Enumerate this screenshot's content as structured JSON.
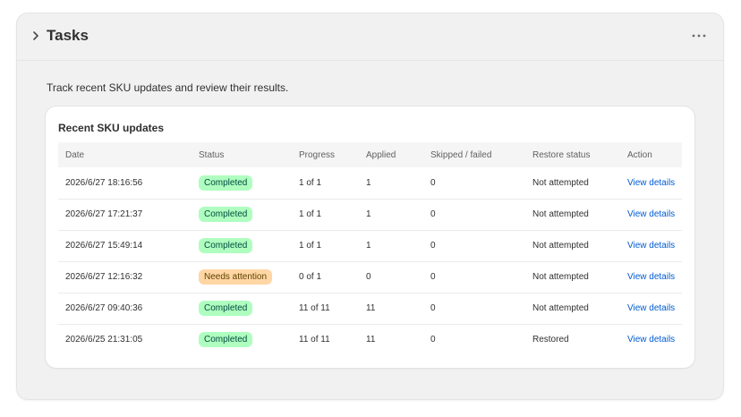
{
  "header": {
    "title": "Tasks",
    "expand_icon": "chevron-right-icon",
    "more_icon": "more-horizontal-icon"
  },
  "description": "Track recent SKU updates and review their results.",
  "card": {
    "title": "Recent SKU updates",
    "columns": [
      "Date",
      "Status",
      "Progress",
      "Applied",
      "Skipped / failed",
      "Restore status",
      "Action"
    ],
    "rows": [
      {
        "date": "2026/6/27 18:16:56",
        "status": "Completed",
        "status_tone": "success",
        "progress": "1 of 1",
        "applied": "1",
        "skipped": "0",
        "restore": "Not attempted",
        "action": "View details"
      },
      {
        "date": "2026/6/27 17:21:37",
        "status": "Completed",
        "status_tone": "success",
        "progress": "1 of 1",
        "applied": "1",
        "skipped": "0",
        "restore": "Not attempted",
        "action": "View details"
      },
      {
        "date": "2026/6/27 15:49:14",
        "status": "Completed",
        "status_tone": "success",
        "progress": "1 of 1",
        "applied": "1",
        "skipped": "0",
        "restore": "Not attempted",
        "action": "View details"
      },
      {
        "date": "2026/6/27 12:16:32",
        "status": "Needs attention",
        "status_tone": "warning",
        "progress": "0 of 1",
        "applied": "0",
        "skipped": "0",
        "restore": "Not attempted",
        "action": "View details"
      },
      {
        "date": "2026/6/27 09:40:36",
        "status": "Completed",
        "status_tone": "success",
        "progress": "11 of 11",
        "applied": "11",
        "skipped": "0",
        "restore": "Not attempted",
        "action": "View details"
      },
      {
        "date": "2026/6/25 21:31:05",
        "status": "Completed",
        "status_tone": "success",
        "progress": "11 of 11",
        "applied": "11",
        "skipped": "0",
        "restore": "Restored",
        "action": "View details"
      }
    ]
  },
  "colors": {
    "success_bg": "#affebf",
    "warning_bg": "#ffd6a4",
    "link": "#005bd3"
  }
}
